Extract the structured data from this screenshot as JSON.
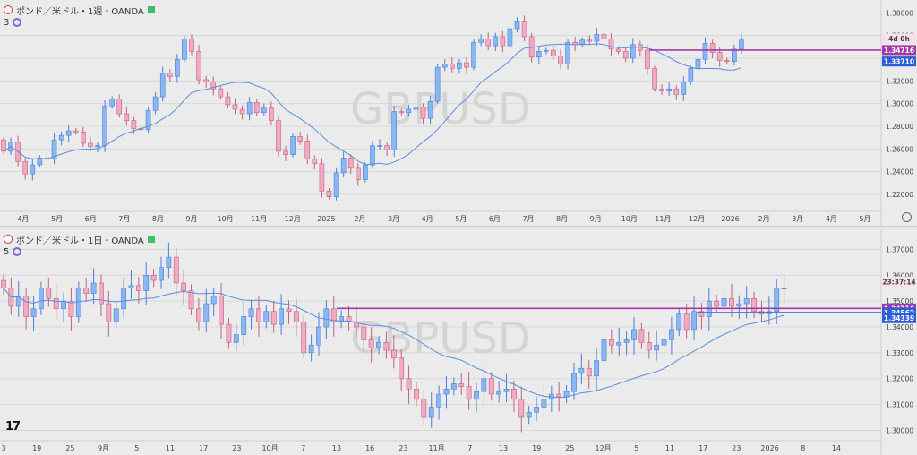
{
  "colors": {
    "up": "#8ab6f2",
    "up_stroke": "#4a7fd6",
    "down": "#f2a9c4",
    "down_stroke": "#c0607f",
    "ma": "#5b8de0",
    "hline": "#a13aa8",
    "hline2": "#2c5fd6"
  },
  "chart_data": [
    {
      "type": "candlestick",
      "header": {
        "title": "ポンド／米ドル・1週・OANDA",
        "indicator": "3"
      },
      "watermark": "GBPUSD",
      "ylim": [
        1.205,
        1.385
      ],
      "y_ticks": [
        "1.38000",
        "1.36000",
        "1.34000",
        "1.32000",
        "1.30000",
        "1.28000",
        "1.26000",
        "1.24000",
        "1.22000"
      ],
      "x_labels": [
        "4月",
        "5月",
        "6月",
        "7月",
        "8月",
        "9月",
        "10月",
        "11月",
        "12月",
        "2025",
        "2月",
        "3月",
        "4月",
        "5月",
        "6月",
        "7月",
        "8月",
        "9月",
        "10月",
        "11月",
        "12月",
        "2026",
        "2月",
        "3月",
        "4月",
        "5月"
      ],
      "price_labels": [
        {
          "text": "4d 0h",
          "value": 1.3575,
          "kind": "timer"
        },
        {
          "text": "1.34716",
          "value": 1.34716,
          "kind": "hline"
        },
        {
          "text": "1.33710",
          "value": 1.3371,
          "kind": "ma"
        }
      ],
      "hline": 1.34716,
      "open": [
        1.268,
        1.258,
        1.266,
        1.249,
        1.238,
        1.246,
        1.252,
        1.251,
        1.268,
        1.272,
        1.276,
        1.275,
        1.265,
        1.262,
        1.263,
        1.298,
        1.304,
        1.291,
        1.285,
        1.278,
        1.277,
        1.294,
        1.306,
        1.327,
        1.324,
        1.339,
        1.357,
        1.346,
        1.321,
        1.319,
        1.313,
        1.306,
        1.299,
        1.295,
        1.291,
        1.301,
        1.292,
        1.296,
        1.285,
        1.258,
        1.255,
        1.271,
        1.267,
        1.251,
        1.247,
        1.223,
        1.218,
        1.239,
        1.252,
        1.243,
        1.233,
        1.246,
        1.263,
        1.263,
        1.259,
        1.293,
        1.292,
        1.295,
        1.297,
        1.287,
        1.302,
        1.332,
        1.335,
        1.331,
        1.336,
        1.332,
        1.354,
        1.357,
        1.351,
        1.359,
        1.351,
        1.366,
        1.372,
        1.359,
        1.341,
        1.346,
        1.347,
        1.342,
        1.335,
        1.354,
        1.352,
        1.356,
        1.355,
        1.361,
        1.357,
        1.348,
        1.346,
        1.34,
        1.352,
        1.347,
        1.331,
        1.313,
        1.311,
        1.313,
        1.308,
        1.319,
        1.331,
        1.339,
        1.353,
        1.345,
        1.338,
        1.337,
        1.348
      ],
      "close": [
        1.258,
        1.266,
        1.249,
        1.238,
        1.246,
        1.252,
        1.251,
        1.268,
        1.272,
        1.276,
        1.275,
        1.265,
        1.262,
        1.263,
        1.298,
        1.304,
        1.291,
        1.285,
        1.278,
        1.277,
        1.294,
        1.306,
        1.327,
        1.324,
        1.339,
        1.357,
        1.346,
        1.321,
        1.319,
        1.313,
        1.306,
        1.299,
        1.295,
        1.291,
        1.301,
        1.292,
        1.296,
        1.285,
        1.258,
        1.255,
        1.271,
        1.267,
        1.251,
        1.247,
        1.223,
        1.218,
        1.239,
        1.252,
        1.243,
        1.233,
        1.246,
        1.263,
        1.263,
        1.259,
        1.293,
        1.292,
        1.295,
        1.297,
        1.287,
        1.302,
        1.332,
        1.335,
        1.331,
        1.336,
        1.332,
        1.354,
        1.357,
        1.351,
        1.359,
        1.351,
        1.366,
        1.372,
        1.359,
        1.341,
        1.346,
        1.347,
        1.342,
        1.335,
        1.354,
        1.352,
        1.356,
        1.355,
        1.361,
        1.357,
        1.348,
        1.346,
        1.34,
        1.352,
        1.347,
        1.331,
        1.313,
        1.311,
        1.313,
        1.308,
        1.319,
        1.331,
        1.339,
        1.353,
        1.345,
        1.338,
        1.337,
        1.348,
        1.356
      ]
    },
    {
      "type": "candlestick",
      "header": {
        "title": "ポンド／米ドル・1日・OANDA",
        "indicator": "5"
      },
      "watermark": "GBPUSD",
      "ylim": [
        1.296,
        1.375
      ],
      "y_ticks": [
        "1.37000",
        "1.36000",
        "1.35000",
        "1.34000",
        "1.33000",
        "1.32000",
        "1.31000",
        "1.30000"
      ],
      "x_labels": [
        "3",
        "19",
        "25",
        "9月",
        "5",
        "11",
        "17",
        "23",
        "10月",
        "7",
        "13",
        "16",
        "23",
        "11月",
        "7",
        "13",
        "19",
        "25",
        "12月",
        "5",
        "11",
        "17",
        "23",
        "2026",
        "8",
        "14"
      ],
      "price_labels": [
        {
          "text": "23:37:14",
          "value": 1.3575,
          "kind": "timer"
        },
        {
          "text": "1.34716",
          "value": 1.34716,
          "kind": "hline"
        },
        {
          "text": "1.34562",
          "value": 1.34562,
          "kind": "hline2"
        },
        {
          "text": "1.34339",
          "value": 1.34339,
          "kind": "ma"
        }
      ],
      "hline": 1.34716,
      "hline2": 1.34562,
      "open": [
        1.358,
        1.355,
        1.348,
        1.352,
        1.344,
        1.347,
        1.355,
        1.351,
        1.347,
        1.35,
        1.344,
        1.355,
        1.353,
        1.357,
        1.349,
        1.342,
        1.347,
        1.355,
        1.356,
        1.354,
        1.36,
        1.358,
        1.363,
        1.367,
        1.357,
        1.354,
        1.347,
        1.342,
        1.349,
        1.352,
        1.341,
        1.334,
        1.337,
        1.344,
        1.347,
        1.342,
        1.346,
        1.341,
        1.347,
        1.346,
        1.342,
        1.33,
        1.333,
        1.34,
        1.347,
        1.342,
        1.344,
        1.342,
        1.34,
        1.335,
        1.332,
        1.334,
        1.331,
        1.328,
        1.32,
        1.316,
        1.312,
        1.305,
        1.309,
        1.314,
        1.316,
        1.318,
        1.317,
        1.312,
        1.315,
        1.32,
        1.314,
        1.315,
        1.316,
        1.312,
        1.305,
        1.307,
        1.309,
        1.312,
        1.314,
        1.313,
        1.315,
        1.322,
        1.324,
        1.321,
        1.327,
        1.335,
        1.333,
        1.334,
        1.335,
        1.339,
        1.334,
        1.331,
        1.333,
        1.335,
        1.339,
        1.345,
        1.339,
        1.346,
        1.344,
        1.35,
        1.348,
        1.351,
        1.348,
        1.349,
        1.351,
        1.346,
        1.345,
        1.346,
        1.355
      ],
      "close": [
        1.355,
        1.348,
        1.352,
        1.344,
        1.347,
        1.355,
        1.351,
        1.347,
        1.35,
        1.344,
        1.355,
        1.353,
        1.357,
        1.349,
        1.342,
        1.347,
        1.355,
        1.356,
        1.354,
        1.36,
        1.358,
        1.363,
        1.367,
        1.357,
        1.354,
        1.347,
        1.342,
        1.349,
        1.352,
        1.341,
        1.334,
        1.337,
        1.344,
        1.347,
        1.342,
        1.346,
        1.341,
        1.347,
        1.346,
        1.342,
        1.33,
        1.333,
        1.34,
        1.347,
        1.342,
        1.344,
        1.342,
        1.34,
        1.335,
        1.332,
        1.334,
        1.331,
        1.328,
        1.32,
        1.316,
        1.312,
        1.305,
        1.309,
        1.314,
        1.316,
        1.318,
        1.317,
        1.312,
        1.315,
        1.32,
        1.314,
        1.315,
        1.316,
        1.312,
        1.305,
        1.307,
        1.309,
        1.312,
        1.314,
        1.313,
        1.315,
        1.322,
        1.324,
        1.321,
        1.327,
        1.335,
        1.333,
        1.334,
        1.335,
        1.339,
        1.334,
        1.331,
        1.333,
        1.335,
        1.339,
        1.345,
        1.339,
        1.346,
        1.344,
        1.35,
        1.348,
        1.351,
        1.348,
        1.349,
        1.351,
        1.346,
        1.345,
        1.346,
        1.355,
        1.355
      ]
    }
  ]
}
